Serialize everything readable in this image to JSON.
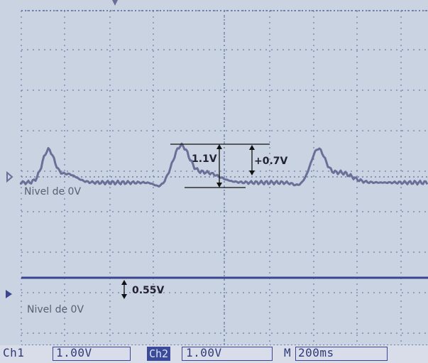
{
  "annotations": {
    "ch1_zero_label": "Nivel de 0V",
    "ch2_zero_label": "Nivel de 0V",
    "peak_to_trough": "1.1V",
    "peak_positive": "+0.7V",
    "ch2_offset": "0.55V"
  },
  "statusbar": {
    "ch1_label": "Ch1",
    "ch1_scale": "1.00V",
    "ch2_label": "Ch2",
    "ch2_scale": "1.00V",
    "time_label": "M",
    "time_scale": "200ms"
  },
  "colors": {
    "screen_bg": "#c9d3e2",
    "grid": "#6f7ea8",
    "trace": "#6a6f98",
    "ch2_trace": "#3a4690"
  }
}
